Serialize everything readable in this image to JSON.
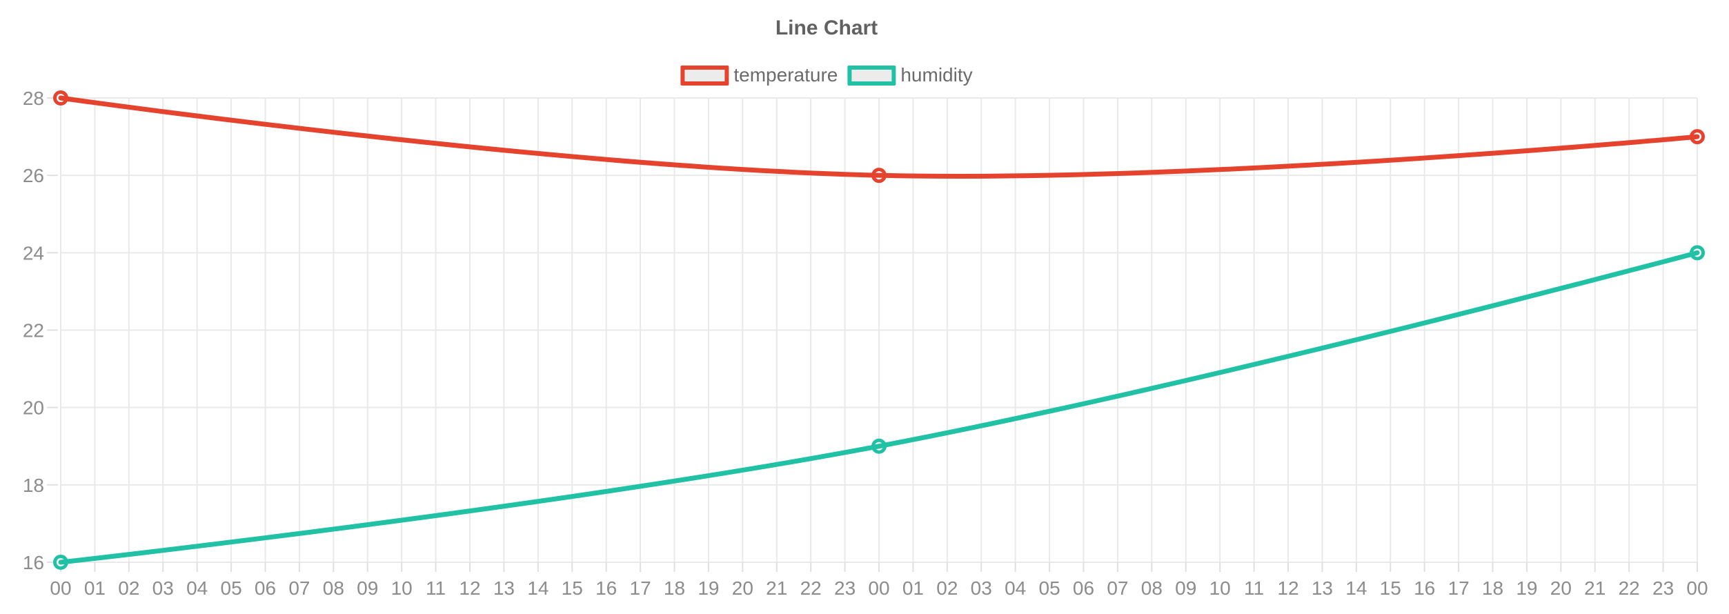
{
  "chart_data": {
    "type": "line",
    "title": "Line Chart",
    "legend_position": "top",
    "grid": true,
    "point_style": "open-circle",
    "xlabel": "",
    "ylabel": "",
    "ylim": [
      16,
      28
    ],
    "y_ticks": [
      16,
      18,
      20,
      22,
      24,
      26,
      28
    ],
    "x_categories": [
      "00",
      "01",
      "02",
      "03",
      "04",
      "05",
      "06",
      "07",
      "08",
      "09",
      "10",
      "11",
      "12",
      "13",
      "14",
      "15",
      "16",
      "17",
      "18",
      "19",
      "20",
      "21",
      "22",
      "23",
      "00",
      "01",
      "02",
      "03",
      "04",
      "05",
      "06",
      "07",
      "08",
      "09",
      "10",
      "11",
      "12",
      "13",
      "14",
      "15",
      "16",
      "17",
      "18",
      "19",
      "20",
      "21",
      "22",
      "23",
      "00"
    ],
    "series": [
      {
        "name": "temperature",
        "color": "#e5432d",
        "points": [
          {
            "x_index": 0,
            "x_label": "00",
            "value": 28
          },
          {
            "x_index": 24,
            "x_label": "00",
            "value": 26
          },
          {
            "x_index": 48,
            "x_label": "00",
            "value": 27
          }
        ]
      },
      {
        "name": "humidity",
        "color": "#20c1a5",
        "points": [
          {
            "x_index": 0,
            "x_label": "00",
            "value": 16
          },
          {
            "x_index": 24,
            "x_label": "00",
            "value": 19
          },
          {
            "x_index": 48,
            "x_label": "00",
            "value": 24
          }
        ]
      }
    ],
    "colors": {
      "grid": "#e9e9e9",
      "axis_tick": "#e0e0e0",
      "tick_label": "#8c8c8c",
      "title": "#616161",
      "legend_label": "#6b6b6b",
      "legend_swatch_fill": "#ececec",
      "point_fill": "#ffffff",
      "background": "#ffffff"
    }
  }
}
